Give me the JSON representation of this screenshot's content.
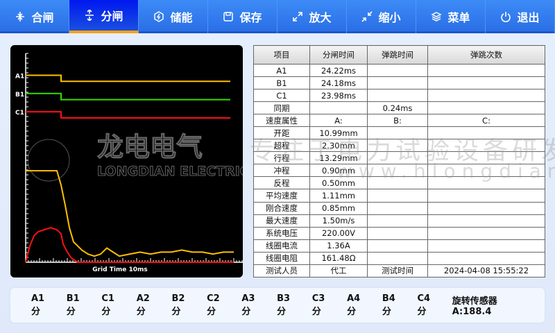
{
  "nav": [
    {
      "label": "合闸",
      "icon": "close-arrows-icon"
    },
    {
      "label": "分闸",
      "icon": "open-arrows-icon",
      "active": true
    },
    {
      "label": "储能",
      "icon": "energy-icon"
    },
    {
      "label": "保存",
      "icon": "save-icon"
    },
    {
      "label": "放大",
      "icon": "expand-icon"
    },
    {
      "label": "缩小",
      "icon": "shrink-icon"
    },
    {
      "label": "菜单",
      "icon": "layers-icon"
    },
    {
      "label": "退出",
      "icon": "power-icon"
    }
  ],
  "colors": {
    "accent": "#f7a21b",
    "nav": "#2f7cf0",
    "active": "#0018f0",
    "A": "#ffc000",
    "B": "#33dd00",
    "C": "#ff1010"
  },
  "chart_data": {
    "type": "line",
    "xlabel": "Grid Time 10ms",
    "channel_labels": [
      "A1",
      "B1",
      "C1"
    ],
    "signals": [
      {
        "name": "A1",
        "color": "#ffc000",
        "high": 0.92,
        "low": 0.89,
        "switch_x": 17
      },
      {
        "name": "B1",
        "color": "#33dd00",
        "high": 0.83,
        "low": 0.8,
        "switch_x": 17
      },
      {
        "name": "C1",
        "color": "#ff1010",
        "high": 0.74,
        "low": 0.71,
        "switch_x": 17
      }
    ],
    "curves": [
      {
        "color": "#ffc000",
        "points": [
          [
            0,
            0.45
          ],
          [
            15,
            0.45
          ],
          [
            17,
            0.38
          ],
          [
            19,
            0.28
          ],
          [
            21,
            0.17
          ],
          [
            23,
            0.1
          ],
          [
            25,
            0.08
          ],
          [
            27,
            0.06
          ],
          [
            30,
            0.04
          ],
          [
            33,
            0.03
          ],
          [
            36,
            0.04
          ],
          [
            39,
            0.07
          ],
          [
            42,
            0.05
          ],
          [
            45,
            0.03
          ],
          [
            50,
            0.04
          ],
          [
            55,
            0.05
          ],
          [
            60,
            0.04
          ],
          [
            65,
            0.05
          ],
          [
            70,
            0.05
          ],
          [
            75,
            0.06
          ],
          [
            80,
            0.05
          ],
          [
            85,
            0.05
          ],
          [
            90,
            0.04
          ],
          [
            95,
            0.05
          ],
          [
            100,
            0.05
          ]
        ]
      },
      {
        "color": "#ff1010",
        "points": [
          [
            0,
            0
          ],
          [
            2,
            0.08
          ],
          [
            4,
            0.13
          ],
          [
            6,
            0.15
          ],
          [
            9,
            0.16
          ],
          [
            12,
            0.17
          ],
          [
            15,
            0.16
          ],
          [
            17,
            0.14
          ],
          [
            18,
            0.09
          ],
          [
            20,
            0.05
          ],
          [
            22,
            0.02
          ],
          [
            25,
            0
          ],
          [
            100,
            0
          ]
        ]
      }
    ],
    "xlim": [
      0,
      100
    ],
    "ylim": [
      0,
      1
    ]
  },
  "table": {
    "headers": [
      "项目",
      "分闸时间",
      "弹跳时间",
      "弹跳次数"
    ],
    "rows": [
      [
        "A1",
        "24.22ms",
        "",
        ""
      ],
      [
        "B1",
        "24.18ms",
        "",
        ""
      ],
      [
        "C1",
        "23.98ms",
        "",
        ""
      ],
      [
        "同期",
        "",
        "0.24ms",
        ""
      ],
      [
        "速度属性",
        "A:",
        "B:",
        "C:"
      ],
      [
        "开距",
        "10.99mm",
        "",
        ""
      ],
      [
        "超程",
        "2.30mm",
        "",
        ""
      ],
      [
        "行程",
        "13.29mm",
        "",
        ""
      ],
      [
        "冲程",
        "0.90mm",
        "",
        ""
      ],
      [
        "反程",
        "0.50mm",
        "",
        ""
      ],
      [
        "平均速度",
        "1.11mm",
        "",
        ""
      ],
      [
        "刚合速度",
        "0.85mm",
        "",
        ""
      ],
      [
        "最大速度",
        "1.50m/s",
        "",
        ""
      ],
      [
        "系统电压",
        "220.00V",
        "",
        ""
      ],
      [
        "线圈电流",
        "1.36A",
        "",
        ""
      ],
      [
        "线圈电阻",
        "161.48Ω",
        "",
        ""
      ],
      [
        "测试人员",
        "代工",
        "测试时间",
        "2024-04-08 15:55:22"
      ]
    ]
  },
  "watermark": {
    "logo_cn": "龙电电气",
    "logo_en": "LONGDIAN ELECTRIC",
    "slogan": "专注于电力试验设备研发",
    "site": "www.hlongdian.com"
  },
  "status": [
    "A1 分",
    "B1 分",
    "C1 分",
    "A2 分",
    "B2 分",
    "C2 分",
    "A3 分",
    "B3 分",
    "C3 分",
    "A4 分",
    "B4 分",
    "C4 分",
    "旋转传感器 A:188.4"
  ]
}
